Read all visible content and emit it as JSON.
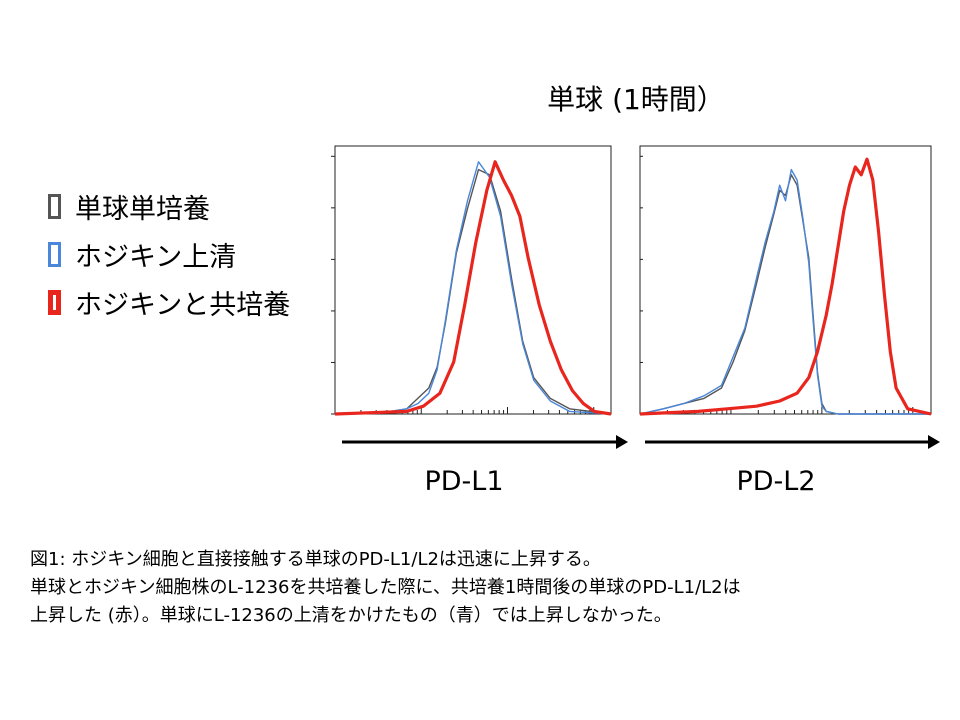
{
  "figure": {
    "title": "単球 (1時間）"
  },
  "legend": [
    {
      "label": "単球単培養",
      "color": "#555555",
      "border": 3
    },
    {
      "label": "ホジキン上清",
      "color": "#4a86d9",
      "border": 3
    },
    {
      "label": "ホジキンと共培養",
      "color": "#e8261e",
      "border": 5
    }
  ],
  "caption": {
    "line1": "図1: ホジキン細胞と直接接触する単球のPD-L1/L2は迅速に上昇する。",
    "line2": "単球とホジキン細胞株のL-1236を共培養した際に、共培養1時間後の単球のPD-L1/L2は",
    "line3": "上昇した (赤）。単球にL-1236の上清をかけたもの（青）では上昇しなかった。"
  },
  "chart_data": [
    {
      "type": "line",
      "xlabel": "PD-L1",
      "ylabel": "",
      "xlim": [
        0,
        100
      ],
      "ylim": [
        0,
        100
      ],
      "x_scale": "log",
      "grid": false,
      "series": [
        {
          "name": "単球単培養",
          "color": "#555555",
          "x": [
            0,
            20,
            26,
            30,
            34,
            37,
            40,
            44,
            48,
            52,
            56,
            60,
            64,
            68,
            72,
            78,
            85,
            100
          ],
          "y": [
            0,
            1,
            2,
            6,
            10,
            18,
            35,
            62,
            79,
            94,
            92,
            78,
            52,
            28,
            14,
            6,
            2,
            0
          ]
        },
        {
          "name": "ホジキン上清",
          "color": "#4a86d9",
          "x": [
            0,
            20,
            26,
            30,
            34,
            37,
            40,
            44,
            48,
            52,
            56,
            60,
            64,
            68,
            72,
            78,
            85,
            100
          ],
          "y": [
            0,
            1,
            2,
            4,
            8,
            17,
            36,
            63,
            82,
            97,
            91,
            76,
            50,
            27,
            13,
            5,
            1,
            0
          ]
        },
        {
          "name": "ホジキンと共培養",
          "color": "#e8261e",
          "x": [
            0,
            26,
            32,
            38,
            43,
            47,
            51,
            55,
            58,
            61,
            64,
            67,
            70,
            74,
            78,
            82,
            86,
            90,
            94,
            100
          ],
          "y": [
            0,
            1,
            3,
            8,
            20,
            42,
            66,
            86,
            97,
            90,
            84,
            76,
            60,
            42,
            28,
            17,
            9,
            4,
            1,
            0
          ]
        }
      ]
    },
    {
      "type": "line",
      "xlabel": "PD-L2",
      "ylabel": "",
      "xlim": [
        0,
        100
      ],
      "ylim": [
        0,
        100
      ],
      "x_scale": "log",
      "grid": false,
      "series": [
        {
          "name": "単球単培養",
          "color": "#555555",
          "x": [
            0,
            8,
            15,
            22,
            28,
            32,
            36,
            40,
            43,
            46,
            48,
            50,
            52,
            54,
            56,
            58,
            59.5,
            61,
            62.5,
            64,
            68,
            100
          ],
          "y": [
            0,
            2,
            4,
            6,
            10,
            20,
            32,
            50,
            64,
            77,
            86,
            84,
            92,
            88,
            74,
            60,
            38,
            16,
            4,
            1,
            0,
            0
          ]
        },
        {
          "name": "ホジキン上清",
          "color": "#4a86d9",
          "x": [
            0,
            8,
            15,
            22,
            28,
            32,
            36,
            40,
            43,
            46,
            48,
            50,
            52,
            54,
            56,
            58,
            59.5,
            61,
            62.5,
            64,
            68,
            100
          ],
          "y": [
            0,
            2,
            4,
            7,
            11,
            22,
            33,
            52,
            66,
            78,
            88,
            82,
            94,
            90,
            75,
            58,
            36,
            15,
            3,
            1,
            0,
            0
          ]
        },
        {
          "name": "ホジキンと共培養",
          "color": "#e8261e",
          "x": [
            0,
            20,
            30,
            40,
            48,
            54,
            58,
            61,
            64,
            66,
            68,
            70,
            72,
            74,
            76,
            78,
            80,
            82,
            84,
            86,
            88,
            92,
            96,
            100
          ],
          "y": [
            0,
            1,
            2,
            3,
            5,
            8,
            14,
            24,
            38,
            50,
            64,
            78,
            88,
            95,
            92,
            98,
            90,
            70,
            46,
            24,
            10,
            2,
            1,
            0
          ]
        }
      ]
    }
  ]
}
